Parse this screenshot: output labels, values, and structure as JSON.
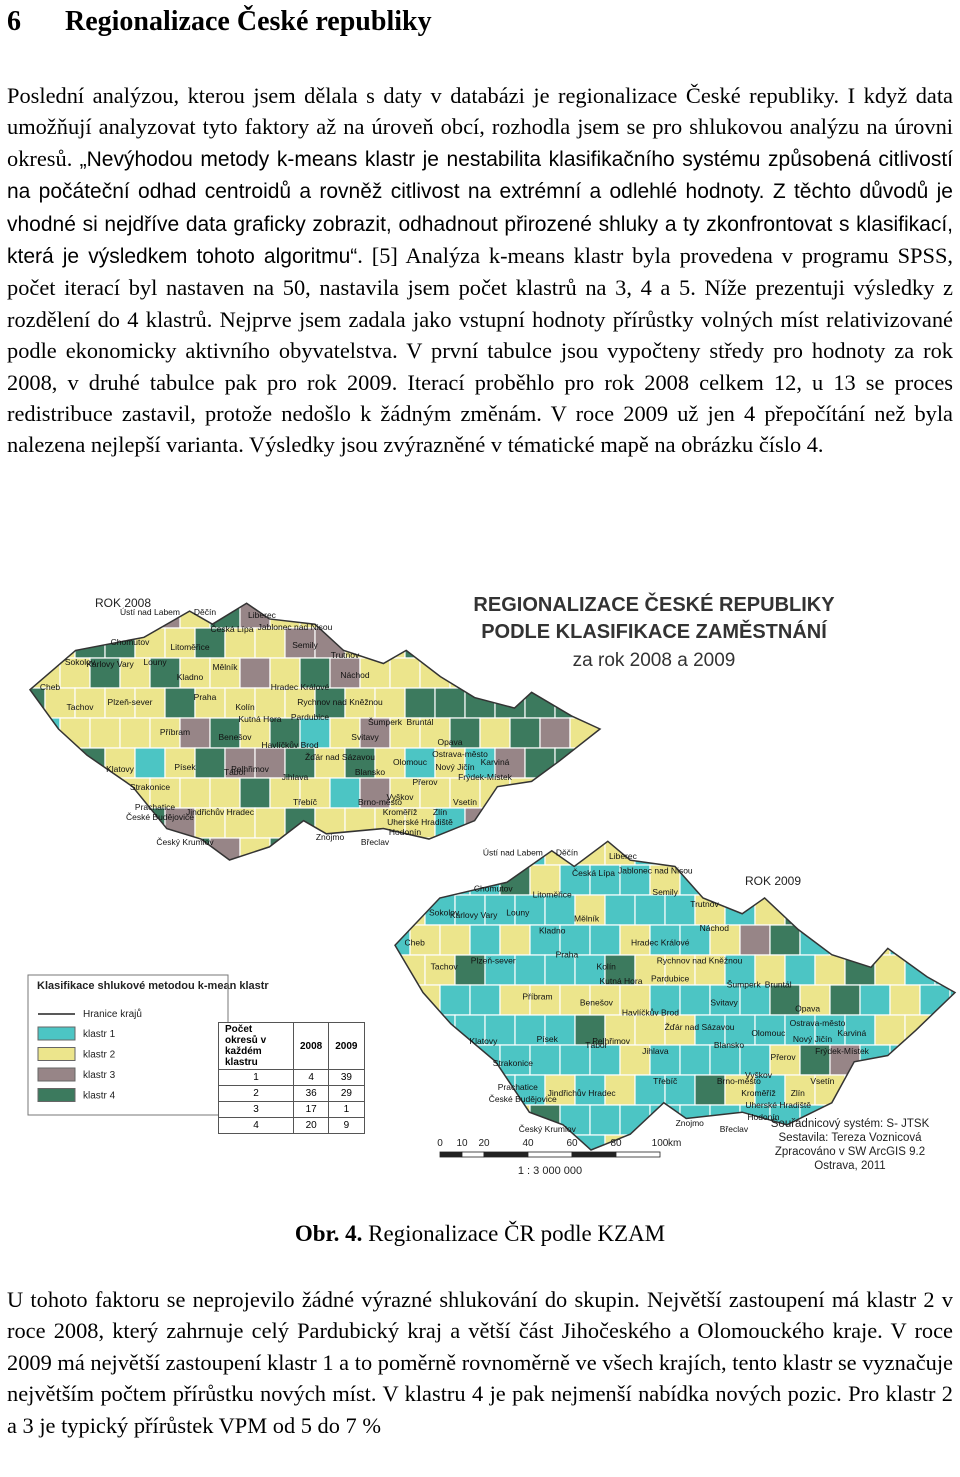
{
  "heading": {
    "number": "6",
    "title": "Regionalizace České republiky"
  },
  "paragraphs": [
    [
      "Poslední analýzou, kterou jsem dělala s daty v databázi je regionalizace České republiky. I když data umožňují analyzovat tyto faktory až na úroveň obcí, rozhodla jsem se pro shlukovou analýzu na úrovni okresů. ",
      "„Nevýhodou metody k-means klastr je nestabilita klasifikačního systému způsobená citlivostí na počáteční odhad centroidů a rovněž citlivost na extrémní a odlehlé hodnoty. Z těchto důvodů je vhodné si nejdříve data graficky zobrazit, odhadnout přirozené shluky a ty zkonfrontovat s klasifikací, která je výsledkem tohoto algoritmu“",
      ". [5] Analýza k-means klastr byla provedena v programu SPSS, počet iterací byl nastaven na 50, nastavila jsem počet klastrů na 3, 4 a 5. Níže prezentuji výsledky z rozdělení do 4 klastrů. Nejprve jsem zadala jako vstupní hodnoty přírůstky volných míst relativizované podle ekonomicky aktivního obyvatelstva. V první tabulce jsou vypočteny středy pro hodnoty za rok 2008, v druhé tabulce pak pro rok 2009. Iterací proběhlo pro rok 2008 celkem 12, u 13 se proces redistribuce zastavil, protože nedošlo k žádným změnám. V roce 2009 už jen 4 přepočítání než byla nalezena nejlepší varianta. Výsledky jsou zvýrazněné v tématické mapě na obrázku číslo 4."
    ],
    [
      "U tohoto faktoru se neprojevilo žádné výrazné shlukování do skupin. Největší zastoupení má klastr 2 v roce 2008, který zahrnuje celý Pardubický kraj a větší část Jihočeského a Olomouckého kraje.  V roce 2009 má největší zastoupení klastr 1 a to poměrně rovnoměrně ve všech krajích, tento klastr se vyznačuje největším počtem přírůstku nových míst. V klastru 4 je pak nejmenší nabídka nových pozic. Pro klastr 2 a 3 je typický přírůstek VPM od 5 do 7 %"
    ]
  ],
  "figure": {
    "map_title": [
      "REGIONALIZACE ČESKÉ REPUBLIKY",
      "PODLE KLASIFIKACE ZAMĚSTNÁNÍ",
      "za rok 2008 a 2009"
    ],
    "maps": [
      {
        "year_label": "ROK 2008",
        "districts": [
          "Ústí nad Labem",
          "Děčín",
          "Česká Lípa",
          "Liberec",
          "Jablonec nad Nisou",
          "Chomutov",
          "Litoměřice",
          "Semily",
          "Sokolov",
          "Karlovy Vary",
          "Louny",
          "Mělník",
          "Trutnov",
          "Cheb",
          "Kladno",
          "Náchod",
          "Tachov",
          "Plzeň-sever",
          "Praha",
          "Kolín",
          "Hradec Králové",
          "Pardubice",
          "Rychnov nad Kněžnou",
          "Kutná Hora",
          "Příbram",
          "Benešov",
          "Klatovy",
          "Písek",
          "Tábor",
          "Havlíčkův Brod",
          "Jihlava",
          "Šumperk",
          "Bruntál",
          "Opava",
          "Ostrava-město",
          "Olomouc",
          "Karviná",
          "Nový Jičín",
          "Frýdek-Místek",
          "Přerov",
          "Vsetín",
          "Zlín",
          "Brno-město",
          "Vyškov",
          "Třebíč",
          "Znojmo",
          "Břeclav",
          "Hodonín",
          "Uherské Hradiště",
          "Strakonice",
          "Prachatice",
          "České Budějovice",
          "Český Krumlov",
          "Jindřichův Hradec",
          "Pelhřimov",
          "Žďár nad Sázavou",
          "Svitavy",
          "Blansko",
          "Kroměříž"
        ]
      },
      {
        "year_label": "ROK 2009",
        "districts": [
          "Ústí nad Labem",
          "Děčín",
          "Česká Lípa",
          "Liberec",
          "Jablonec nad Nisou",
          "Chomutov",
          "Litoměřice",
          "Semily",
          "Sokolov",
          "Karlovy Vary",
          "Louny",
          "Mělník",
          "Trutnov",
          "Cheb",
          "Kladno",
          "Náchod",
          "Tachov",
          "Plzeň-sever",
          "Praha",
          "Kolín",
          "Hradec Králové",
          "Pardubice",
          "Rychnov nad Kněžnou",
          "Kutná Hora",
          "Příbram",
          "Benešov",
          "Klatovy",
          "Písek",
          "Tábor",
          "Havlíčkův Brod",
          "Jihlava",
          "Šumperk",
          "Bruntál",
          "Opava",
          "Ostrava-město",
          "Olomouc",
          "Karviná",
          "Nový Jičín",
          "Frýdek-Místek",
          "Přerov",
          "Vsetín",
          "Zlín",
          "Brno-město",
          "Vyškov",
          "Třebíč",
          "Znojmo",
          "Břeclav",
          "Hodonín",
          "Uherské Hradiště",
          "Strakonice",
          "Prachatice",
          "České Budějovice",
          "Český Krumlov",
          "Jindřichův Hradec",
          "Pelhřimov",
          "Žďár nad Sázavou",
          "Svitavy",
          "Blansko",
          "Kroměříž"
        ]
      }
    ],
    "legend": {
      "title": "Klasifikace shlukové metodou k-mean klastr",
      "boundary": "Hranice krajů",
      "items": [
        {
          "label": "klastr 1",
          "color": "#4cc5c4"
        },
        {
          "label": "klastr 2",
          "color": "#ece58c"
        },
        {
          "label": "klastr 3",
          "color": "#978587"
        },
        {
          "label": "klastr 4",
          "color": "#3c7a5e"
        }
      ]
    },
    "table": {
      "header": [
        "Počet okresů v každém klastru",
        "2008",
        "2009"
      ],
      "rows": [
        [
          1,
          4,
          39
        ],
        [
          2,
          36,
          29
        ],
        [
          3,
          17,
          1
        ],
        [
          4,
          20,
          9
        ]
      ]
    },
    "scale": {
      "ticks": [
        0,
        10,
        20,
        40,
        60,
        80,
        100
      ],
      "unit": "km",
      "ratio": "1 : 3 000 000"
    },
    "credits": [
      "Souřadnicový systém: S- JTSK",
      "Sestavila: Tereza Voznicová",
      "Zpracováno v SW ArcGIS 9.2",
      "Ostrava, 2011"
    ],
    "caption": {
      "label": "Obr. 4.",
      "text": " Regionalizace ČR podle KZAM"
    }
  }
}
